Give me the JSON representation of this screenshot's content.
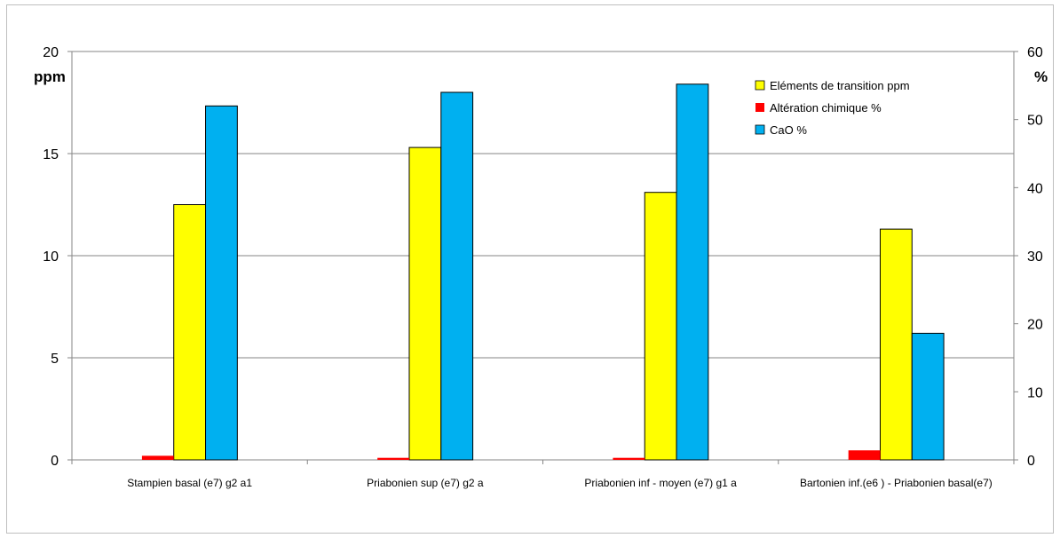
{
  "chart_data": {
    "type": "bar",
    "left_axis_unit": "ppm",
    "right_axis_unit": "%",
    "left_ylim": [
      0,
      20
    ],
    "right_ylim": [
      0,
      60
    ],
    "left_ticks": [
      0,
      5,
      10,
      15,
      20
    ],
    "right_ticks": [
      0,
      10,
      20,
      30,
      40,
      50,
      60
    ],
    "grid": true,
    "legend_position": "top-right",
    "categories": [
      "Stampien basal  (e7)  g2 a1",
      "Priabonien sup  (e7)  g2  a",
      "Priabonien inf - moyen (e7)  g1  a",
      "Bartonien inf.(e6 ) - Priabonien basal(e7)"
    ],
    "series": [
      {
        "name": "Eléments de transition ppm",
        "axis": "left",
        "color": "#ffff00",
        "values": [
          12.5,
          15.3,
          13.1,
          11.3
        ]
      },
      {
        "name": "Altération chimique %",
        "axis": "right",
        "color": "#ff0000",
        "values": [
          0.6,
          0.3,
          0.3,
          1.4
        ]
      },
      {
        "name": "CaO  %",
        "axis": "right",
        "color": "#00b0f0",
        "values": [
          52,
          54,
          55.2,
          18.6
        ]
      }
    ]
  }
}
